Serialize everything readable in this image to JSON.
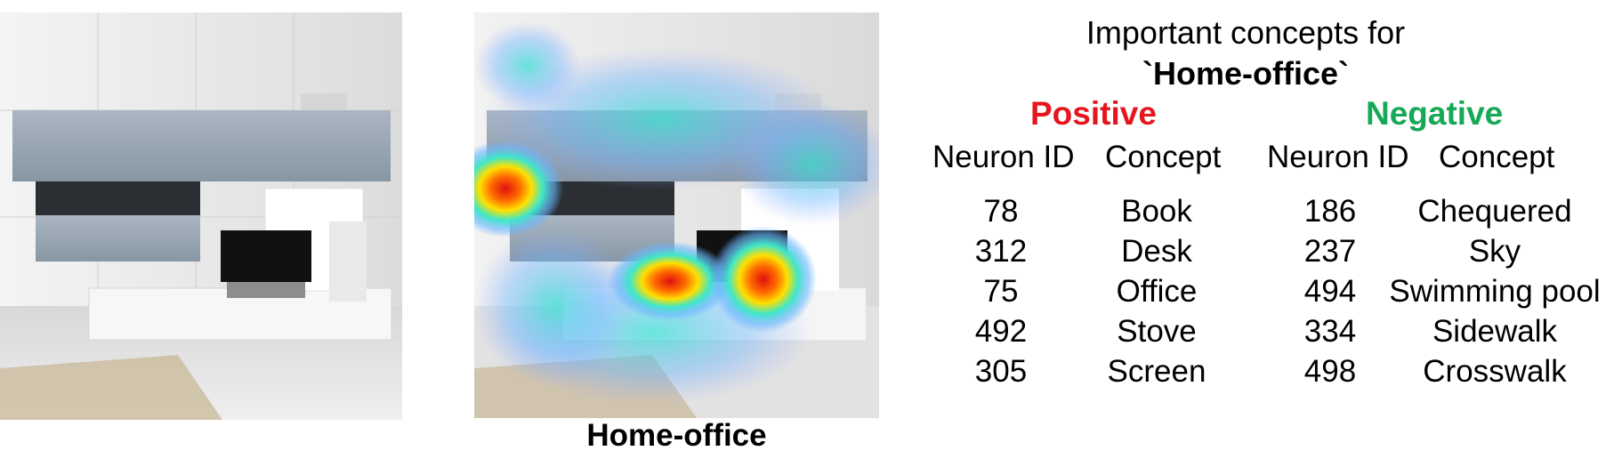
{
  "figure": {
    "heading_line1": "Important concepts for",
    "heading_line2": "`Home-office`",
    "caption": "Home-office",
    "positive": {
      "title": "Positive",
      "color": "#e5161d",
      "col_id": "Neuron ID",
      "col_concept": "Concept",
      "rows": [
        {
          "id": "78",
          "concept": "Book"
        },
        {
          "id": "312",
          "concept": "Desk"
        },
        {
          "id": "75",
          "concept": "Office"
        },
        {
          "id": "492",
          "concept": "Stove"
        },
        {
          "id": "305",
          "concept": "Screen"
        }
      ]
    },
    "negative": {
      "title": "Negative",
      "color": "#17a858",
      "col_id": "Neuron ID",
      "col_concept": "Concept",
      "rows": [
        {
          "id": "186",
          "concept": "Chequered"
        },
        {
          "id": "237",
          "concept": "Sky"
        },
        {
          "id": "494",
          "concept": "Swimming pool"
        },
        {
          "id": "334",
          "concept": "Sidewalk"
        },
        {
          "id": "498",
          "concept": "Crosswalk"
        }
      ]
    }
  }
}
